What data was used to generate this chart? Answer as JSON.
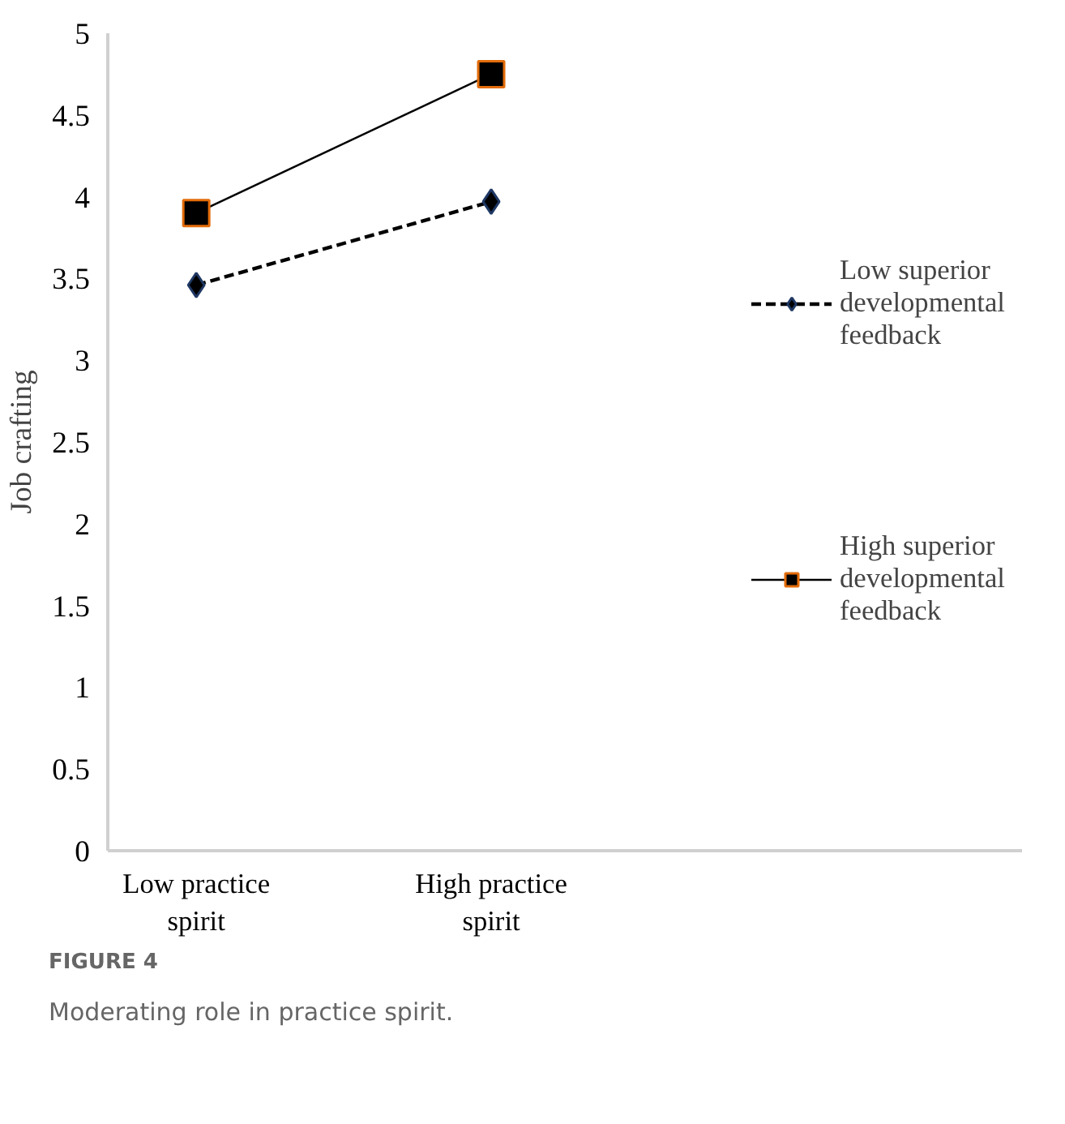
{
  "chart_data": {
    "type": "line",
    "ylabel": "Job crafting",
    "categories": [
      "Low practice spirit",
      "High practice spirit"
    ],
    "series": [
      {
        "name": "Low superior developmental feedback",
        "color": "#000000",
        "values": [
          3.46,
          3.97
        ],
        "marker": "diamond",
        "line_style": "dashed"
      },
      {
        "name": "High superior developmental feedback",
        "color": "#000000",
        "values": [
          3.9,
          4.75
        ],
        "marker": "square",
        "line_style": "solid"
      }
    ],
    "ylim": [
      0,
      5
    ],
    "yticks": [
      0,
      0.5,
      1,
      1.5,
      2,
      2.5,
      3,
      3.5,
      4,
      4.5,
      5
    ],
    "grid": false,
    "legend": "right",
    "annotations": [
      "FIGURE 4",
      "Moderating role in practice spirit."
    ]
  }
}
